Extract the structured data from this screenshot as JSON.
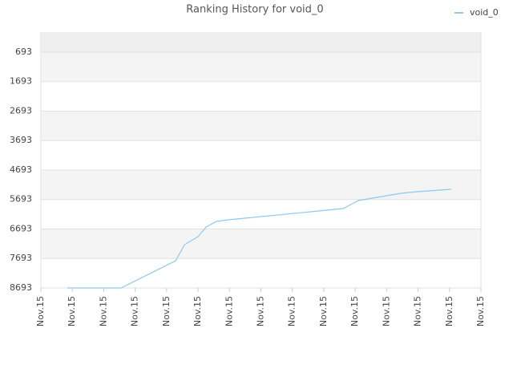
{
  "chart_data": {
    "type": "line",
    "title": "Ranking History for void_0",
    "x": [
      0.84,
      2.55,
      4.29,
      4.57,
      5.0,
      5.26,
      5.59,
      5.97,
      9.62,
      10.1,
      11.45,
      11.96,
      13.06
    ],
    "series": [
      {
        "name": "void_0",
        "color": "#8ec8f0",
        "values": [
          8693,
          8693,
          7768,
          7224,
          6952,
          6625,
          6435,
          6381,
          6000,
          5727,
          5482,
          5428,
          5346
        ]
      }
    ],
    "xlim": [
      0,
      14
    ],
    "xticks": [
      {
        "value": 0,
        "label": "Nov.15"
      },
      {
        "value": 1,
        "label": "Nov.15"
      },
      {
        "value": 2,
        "label": "Nov.15"
      },
      {
        "value": 3,
        "label": "Nov.15"
      },
      {
        "value": 4,
        "label": "Nov.15"
      },
      {
        "value": 5,
        "label": "Nov.15"
      },
      {
        "value": 6,
        "label": "Nov.15"
      },
      {
        "value": 7,
        "label": "Nov.15"
      },
      {
        "value": 8,
        "label": "Nov.15"
      },
      {
        "value": 9,
        "label": "Nov.15"
      },
      {
        "value": 10,
        "label": "Nov.15"
      },
      {
        "value": 11,
        "label": "Nov.15"
      },
      {
        "value": 12,
        "label": "Nov.15"
      },
      {
        "value": 13,
        "label": "Nov.15"
      },
      {
        "value": 14,
        "label": "Nov.15"
      }
    ],
    "ylim": [
      13,
      8693
    ],
    "y_inverted": true,
    "yticks": [
      693,
      1693,
      2693,
      3693,
      4693,
      5693,
      6693,
      7693,
      8693
    ],
    "grid": true,
    "legend": "top-right"
  }
}
